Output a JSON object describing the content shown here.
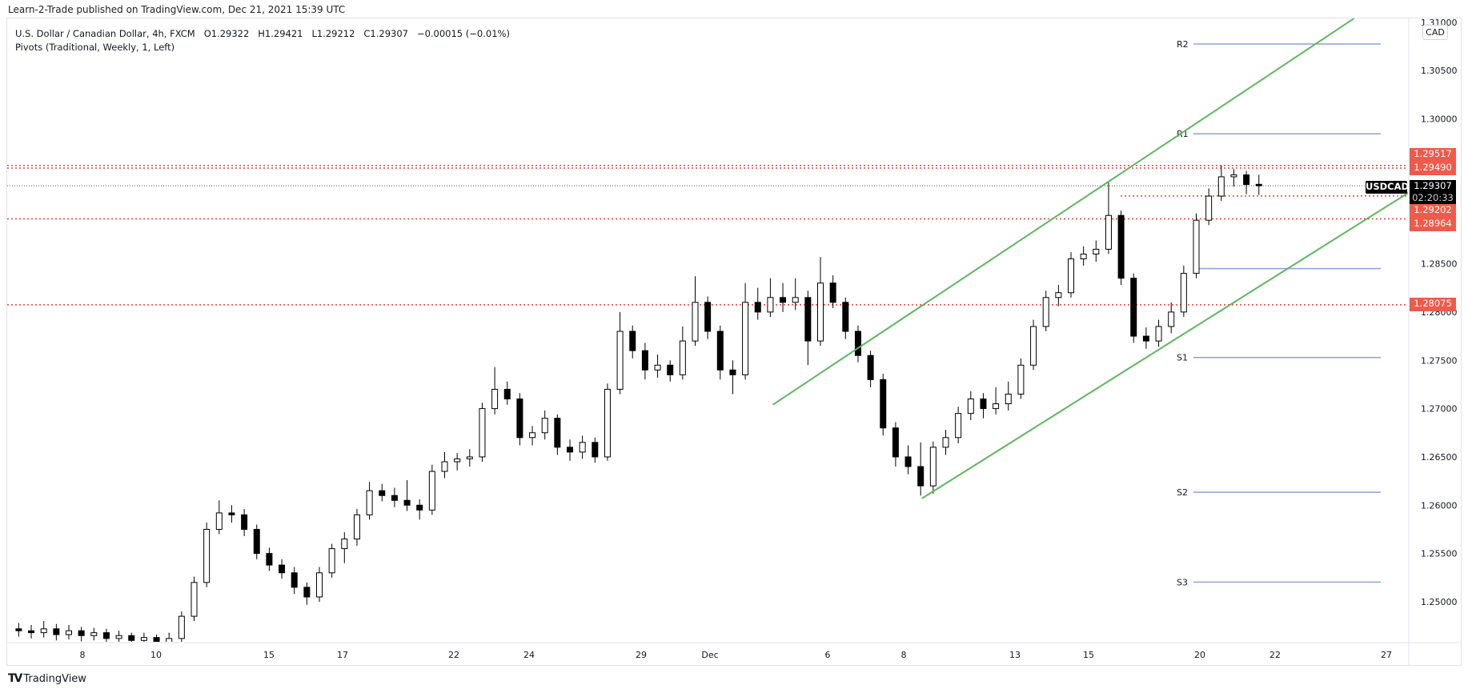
{
  "header": {
    "published": "Learn-2-Trade published on TradingView.com, Dec 21, 2021 15:39 UTC"
  },
  "legend": {
    "symbol_line": "U.S. Dollar / Canadian Dollar, 4h, FXCM",
    "open": "O1.29322",
    "high": "H1.29421",
    "low": "L1.29212",
    "close": "C1.29307",
    "change": "−0.00015 (−0.01%)",
    "indicator": "Pivots (Traditional, Weekly, 1, Left)"
  },
  "price_axis": {
    "currency": "CAD"
  },
  "current": {
    "symbol": "USDCAD",
    "price": "1.29307",
    "countdown": "02:20:33"
  },
  "footer": {
    "brand": "TradingView"
  },
  "colors": {
    "up": "#ffffff",
    "down": "#000000",
    "trend": "#5cb85c",
    "pivot": "#8fa0dc",
    "pivot_label": "#4a5bc4",
    "level": "#e0463c",
    "level_tag": "#f05a4a"
  },
  "chart_data": {
    "type": "candlestick",
    "title": "U.S. Dollar / Canadian Dollar, 4h, FXCM",
    "ylim": [
      1.2455,
      1.3115
    ],
    "y_ticks": [
      "1.31000",
      "1.30500",
      "1.30000",
      "1.28500",
      "1.28000",
      "1.27500",
      "1.27000",
      "1.26500",
      "1.26000",
      "1.25500",
      "1.25000"
    ],
    "x_ticks": [
      "8",
      "10",
      "15",
      "17",
      "22",
      "24",
      "29",
      "Dec",
      "6",
      "8",
      "13",
      "15",
      "20",
      "22",
      "27"
    ],
    "candles": [
      [
        1.2472,
        1.2478,
        1.2464,
        1.247
      ],
      [
        1.247,
        1.2476,
        1.2462,
        1.2468
      ],
      [
        1.2468,
        1.248,
        1.2463,
        1.2472
      ],
      [
        1.2472,
        1.2477,
        1.246,
        1.2466
      ],
      [
        1.2466,
        1.2476,
        1.2461,
        1.247
      ],
      [
        1.247,
        1.2474,
        1.2459,
        1.2465
      ],
      [
        1.2465,
        1.2473,
        1.246,
        1.2468
      ],
      [
        1.2468,
        1.2472,
        1.2456,
        1.2462
      ],
      [
        1.2462,
        1.247,
        1.2458,
        1.2465
      ],
      [
        1.2465,
        1.2468,
        1.2454,
        1.246
      ],
      [
        1.246,
        1.2468,
        1.2455,
        1.2463
      ],
      [
        1.2463,
        1.2466,
        1.2452,
        1.2458
      ],
      [
        1.2458,
        1.2468,
        1.2454,
        1.2462
      ],
      [
        1.2462,
        1.249,
        1.2458,
        1.2485
      ],
      [
        1.2485,
        1.2526,
        1.248,
        1.252
      ],
      [
        1.252,
        1.2582,
        1.2515,
        1.2575
      ],
      [
        1.2575,
        1.2605,
        1.257,
        1.2592
      ],
      [
        1.2592,
        1.26,
        1.2582,
        1.259
      ],
      [
        1.259,
        1.2596,
        1.2568,
        1.2575
      ],
      [
        1.2575,
        1.258,
        1.2544,
        1.255
      ],
      [
        1.255,
        1.2556,
        1.2532,
        1.2538
      ],
      [
        1.2538,
        1.2544,
        1.2524,
        1.253
      ],
      [
        1.253,
        1.2536,
        1.2508,
        1.2515
      ],
      [
        1.2515,
        1.252,
        1.2497,
        1.2505
      ],
      [
        1.2505,
        1.2536,
        1.25,
        1.253
      ],
      [
        1.253,
        1.256,
        1.2525,
        1.2555
      ],
      [
        1.2555,
        1.2572,
        1.254,
        1.2565
      ],
      [
        1.2565,
        1.2596,
        1.2558,
        1.259
      ],
      [
        1.259,
        1.2624,
        1.2585,
        1.2615
      ],
      [
        1.2615,
        1.2622,
        1.2604,
        1.261
      ],
      [
        1.261,
        1.2618,
        1.2598,
        1.2605
      ],
      [
        1.2605,
        1.2626,
        1.2594,
        1.26
      ],
      [
        1.26,
        1.2606,
        1.2585,
        1.2595
      ],
      [
        1.2595,
        1.2642,
        1.259,
        1.2635
      ],
      [
        1.2635,
        1.2655,
        1.2628,
        1.2645
      ],
      [
        1.2645,
        1.2654,
        1.2636,
        1.2648
      ],
      [
        1.2648,
        1.2658,
        1.264,
        1.265
      ],
      [
        1.265,
        1.2706,
        1.2645,
        1.27
      ],
      [
        1.27,
        1.2743,
        1.2694,
        1.272
      ],
      [
        1.272,
        1.2728,
        1.2704,
        1.271
      ],
      [
        1.271,
        1.2716,
        1.2662,
        1.267
      ],
      [
        1.267,
        1.2682,
        1.2662,
        1.2675
      ],
      [
        1.2675,
        1.2698,
        1.2668,
        1.269
      ],
      [
        1.269,
        1.2694,
        1.2652,
        1.266
      ],
      [
        1.266,
        1.2668,
        1.2646,
        1.2655
      ],
      [
        1.2655,
        1.2672,
        1.2648,
        1.2665
      ],
      [
        1.2665,
        1.267,
        1.2644,
        1.265
      ],
      [
        1.265,
        1.2726,
        1.2646,
        1.272
      ],
      [
        1.272,
        1.28,
        1.2715,
        1.278
      ],
      [
        1.278,
        1.2786,
        1.2752,
        1.276
      ],
      [
        1.276,
        1.2768,
        1.273,
        1.274
      ],
      [
        1.274,
        1.2756,
        1.2732,
        1.2745
      ],
      [
        1.2745,
        1.275,
        1.2728,
        1.2735
      ],
      [
        1.2735,
        1.2785,
        1.273,
        1.277
      ],
      [
        1.277,
        1.2837,
        1.2765,
        1.281
      ],
      [
        1.281,
        1.2816,
        1.2772,
        1.278
      ],
      [
        1.278,
        1.2786,
        1.273,
        1.274
      ],
      [
        1.274,
        1.275,
        1.2715,
        1.2735
      ],
      [
        1.2735,
        1.283,
        1.273,
        1.281
      ],
      [
        1.281,
        1.2825,
        1.2792,
        1.28
      ],
      [
        1.28,
        1.2835,
        1.2795,
        1.2815
      ],
      [
        1.2815,
        1.283,
        1.28,
        1.281
      ],
      [
        1.281,
        1.2835,
        1.2802,
        1.2815
      ],
      [
        1.2815,
        1.2822,
        1.2745,
        1.277
      ],
      [
        1.277,
        1.2857,
        1.2765,
        1.283
      ],
      [
        1.283,
        1.2838,
        1.2804,
        1.281
      ],
      [
        1.281,
        1.2815,
        1.2772,
        1.278
      ],
      [
        1.278,
        1.2786,
        1.2748,
        1.2755
      ],
      [
        1.2755,
        1.276,
        1.2722,
        1.273
      ],
      [
        1.273,
        1.2736,
        1.2672,
        1.268
      ],
      [
        1.268,
        1.2686,
        1.264,
        1.265
      ],
      [
        1.265,
        1.2662,
        1.2632,
        1.264
      ],
      [
        1.264,
        1.2665,
        1.261,
        1.262
      ],
      [
        1.262,
        1.2666,
        1.2612,
        1.266
      ],
      [
        1.266,
        1.2678,
        1.2652,
        1.267
      ],
      [
        1.267,
        1.2702,
        1.2664,
        1.2695
      ],
      [
        1.2695,
        1.2718,
        1.2688,
        1.271
      ],
      [
        1.271,
        1.2716,
        1.269,
        1.27
      ],
      [
        1.27,
        1.2722,
        1.2694,
        1.2705
      ],
      [
        1.2705,
        1.2728,
        1.2698,
        1.2715
      ],
      [
        1.2715,
        1.2752,
        1.271,
        1.2745
      ],
      [
        1.2745,
        1.2792,
        1.274,
        1.2785
      ],
      [
        1.2785,
        1.2822,
        1.278,
        1.2815
      ],
      [
        1.2815,
        1.2828,
        1.2806,
        1.282
      ],
      [
        1.282,
        1.2862,
        1.2815,
        1.2855
      ],
      [
        1.2855,
        1.2868,
        1.2848,
        1.286
      ],
      [
        1.286,
        1.2874,
        1.2852,
        1.2865
      ],
      [
        1.2865,
        1.2934,
        1.286,
        1.29
      ],
      [
        1.29,
        1.2905,
        1.2828,
        1.2835
      ],
      [
        1.2835,
        1.284,
        1.2768,
        1.2775
      ],
      [
        1.2775,
        1.2784,
        1.2762,
        1.277
      ],
      [
        1.277,
        1.2792,
        1.2764,
        1.2785
      ],
      [
        1.2785,
        1.281,
        1.2778,
        1.28
      ],
      [
        1.28,
        1.2848,
        1.2795,
        1.284
      ],
      [
        1.284,
        1.2902,
        1.2835,
        1.2895
      ],
      [
        1.2895,
        1.2928,
        1.289,
        1.292
      ],
      [
        1.292,
        1.2952,
        1.2915,
        1.294
      ],
      [
        1.294,
        1.2948,
        1.293,
        1.2942
      ],
      [
        1.2942,
        1.2946,
        1.2922,
        1.2932
      ],
      [
        1.29322,
        1.29421,
        1.29212,
        1.29307
      ]
    ],
    "pivots": [
      {
        "label": "R2",
        "value": 1.30775
      },
      {
        "label": "R1",
        "value": 1.29845
      },
      {
        "label": "",
        "value": 1.2845
      },
      {
        "label": "S1",
        "value": 1.27529
      },
      {
        "label": "S2",
        "value": 1.26134
      },
      {
        "label": "S3",
        "value": 1.25204
      }
    ],
    "levels": [
      {
        "value": 1.29517,
        "label": "1.29517"
      },
      {
        "value": 1.2949,
        "label": "1.29490"
      },
      {
        "value": 1.29202,
        "label": "1.29202"
      },
      {
        "value": 1.28964,
        "label": "1.28964"
      },
      {
        "value": 1.28075,
        "label": "1.28075"
      }
    ],
    "trendlines": [
      {
        "name": "channel-upper",
        "from": {
          "bar": 60.2,
          "price": 1.2704
        },
        "to": {
          "bar": 106.6,
          "price": 1.3104
        }
      },
      {
        "name": "channel-lower",
        "from": {
          "bar": 72.1,
          "price": 1.2607
        },
        "to": {
          "bar": 111,
          "price": 1.2924
        }
      }
    ],
    "last_price": 1.29307
  }
}
